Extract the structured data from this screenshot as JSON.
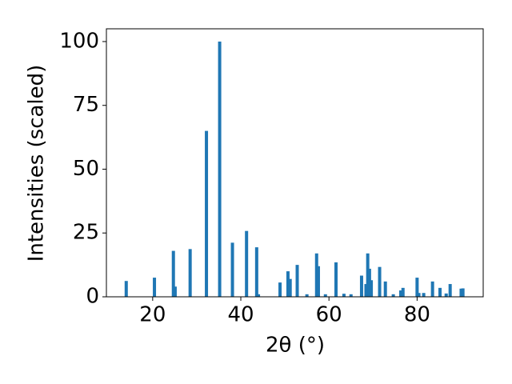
{
  "chart_data": {
    "type": "bar",
    "xlabel": "2θ (°)",
    "ylabel": "Intensities (scaled)",
    "color": "#1f77b4",
    "x": [
      14.0,
      20.4,
      24.7,
      25.1,
      28.5,
      32.2,
      35.2,
      38.1,
      41.3,
      43.6,
      44.0,
      48.9,
      50.7,
      51.2,
      52.8,
      55.0,
      57.2,
      57.6,
      59.2,
      61.6,
      63.4,
      65.0,
      67.4,
      68.4,
      68.8,
      69.2,
      69.6,
      71.5,
      72.8,
      74.6,
      76.3,
      76.8,
      80.0,
      80.4,
      81.5,
      83.5,
      85.2,
      86.6,
      87.5,
      90.0,
      90.4
    ],
    "values": [
      6.2,
      7.5,
      18,
      4,
      18.7,
      65,
      100,
      21.2,
      25.8,
      19.4,
      1,
      5.6,
      10,
      7,
      12.5,
      1,
      17,
      12,
      1,
      13.5,
      1.2,
      1,
      8.3,
      5,
      17,
      11,
      6.5,
      11.7,
      6,
      1,
      2.5,
      3.5,
      7.5,
      1.5,
      1.5,
      6,
      3.5,
      1.3,
      5,
      3.2,
      3.3
    ],
    "xlim": [
      9.5,
      95
    ],
    "ylim": [
      0,
      105
    ],
    "xticks": [
      20,
      40,
      60,
      80
    ],
    "yticks": [
      0,
      25,
      50,
      75,
      100
    ]
  }
}
